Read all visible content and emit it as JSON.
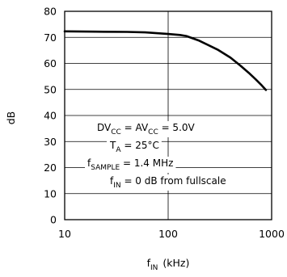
{
  "chart_data": {
    "type": "line",
    "xscale": "log",
    "xlim": [
      10,
      1000
    ],
    "ylim": [
      0,
      80
    ],
    "grid": true,
    "ylabel": "dB",
    "xlabel": {
      "main": "f",
      "sub": "IN",
      "unit": "(kHz)"
    },
    "xticks": [
      {
        "value": 10,
        "label": "10"
      },
      {
        "value": 100,
        "label": "100"
      },
      {
        "value": 1000,
        "label": "1000"
      }
    ],
    "yticks": [
      {
        "value": 0,
        "label": "0"
      },
      {
        "value": 10,
        "label": "10"
      },
      {
        "value": 20,
        "label": "20"
      },
      {
        "value": 30,
        "label": "30"
      },
      {
        "value": 40,
        "label": "40"
      },
      {
        "value": 50,
        "label": "50"
      },
      {
        "value": 60,
        "label": "60"
      },
      {
        "value": 70,
        "label": "70"
      },
      {
        "value": 80,
        "label": "80"
      }
    ],
    "series": [
      {
        "x": [
          10,
          20,
          40,
          60,
          100,
          130,
          150,
          200,
          300,
          400,
          500,
          600,
          700,
          800,
          880
        ],
        "y": [
          72.3,
          72.2,
          72.1,
          71.9,
          71.3,
          70.9,
          70.5,
          68.7,
          65.3,
          62.2,
          59.1,
          56.4,
          53.9,
          51.6,
          49.8
        ]
      }
    ],
    "annotations": [
      {
        "parts": [
          {
            "t": "DV",
            "sub": false
          },
          {
            "t": "CC",
            "sub": true
          },
          {
            "t": " = AV",
            "sub": false
          },
          {
            "t": "CC",
            "sub": true
          },
          {
            "t": " = 5.0V",
            "sub": false
          }
        ]
      },
      {
        "parts": [
          {
            "t": "T",
            "sub": false
          },
          {
            "t": "A",
            "sub": true
          },
          {
            "t": " = 25°C",
            "sub": false
          }
        ]
      },
      {
        "parts": [
          {
            "t": "f",
            "sub": false
          },
          {
            "t": "SAMPLE",
            "sub": true
          },
          {
            "t": " = 1.4 MHz",
            "sub": false
          }
        ]
      },
      {
        "parts": [
          {
            "t": "f",
            "sub": false
          },
          {
            "t": "IN",
            "sub": true
          },
          {
            "t": " = 0 dB from fullscale",
            "sub": false
          }
        ]
      }
    ]
  }
}
